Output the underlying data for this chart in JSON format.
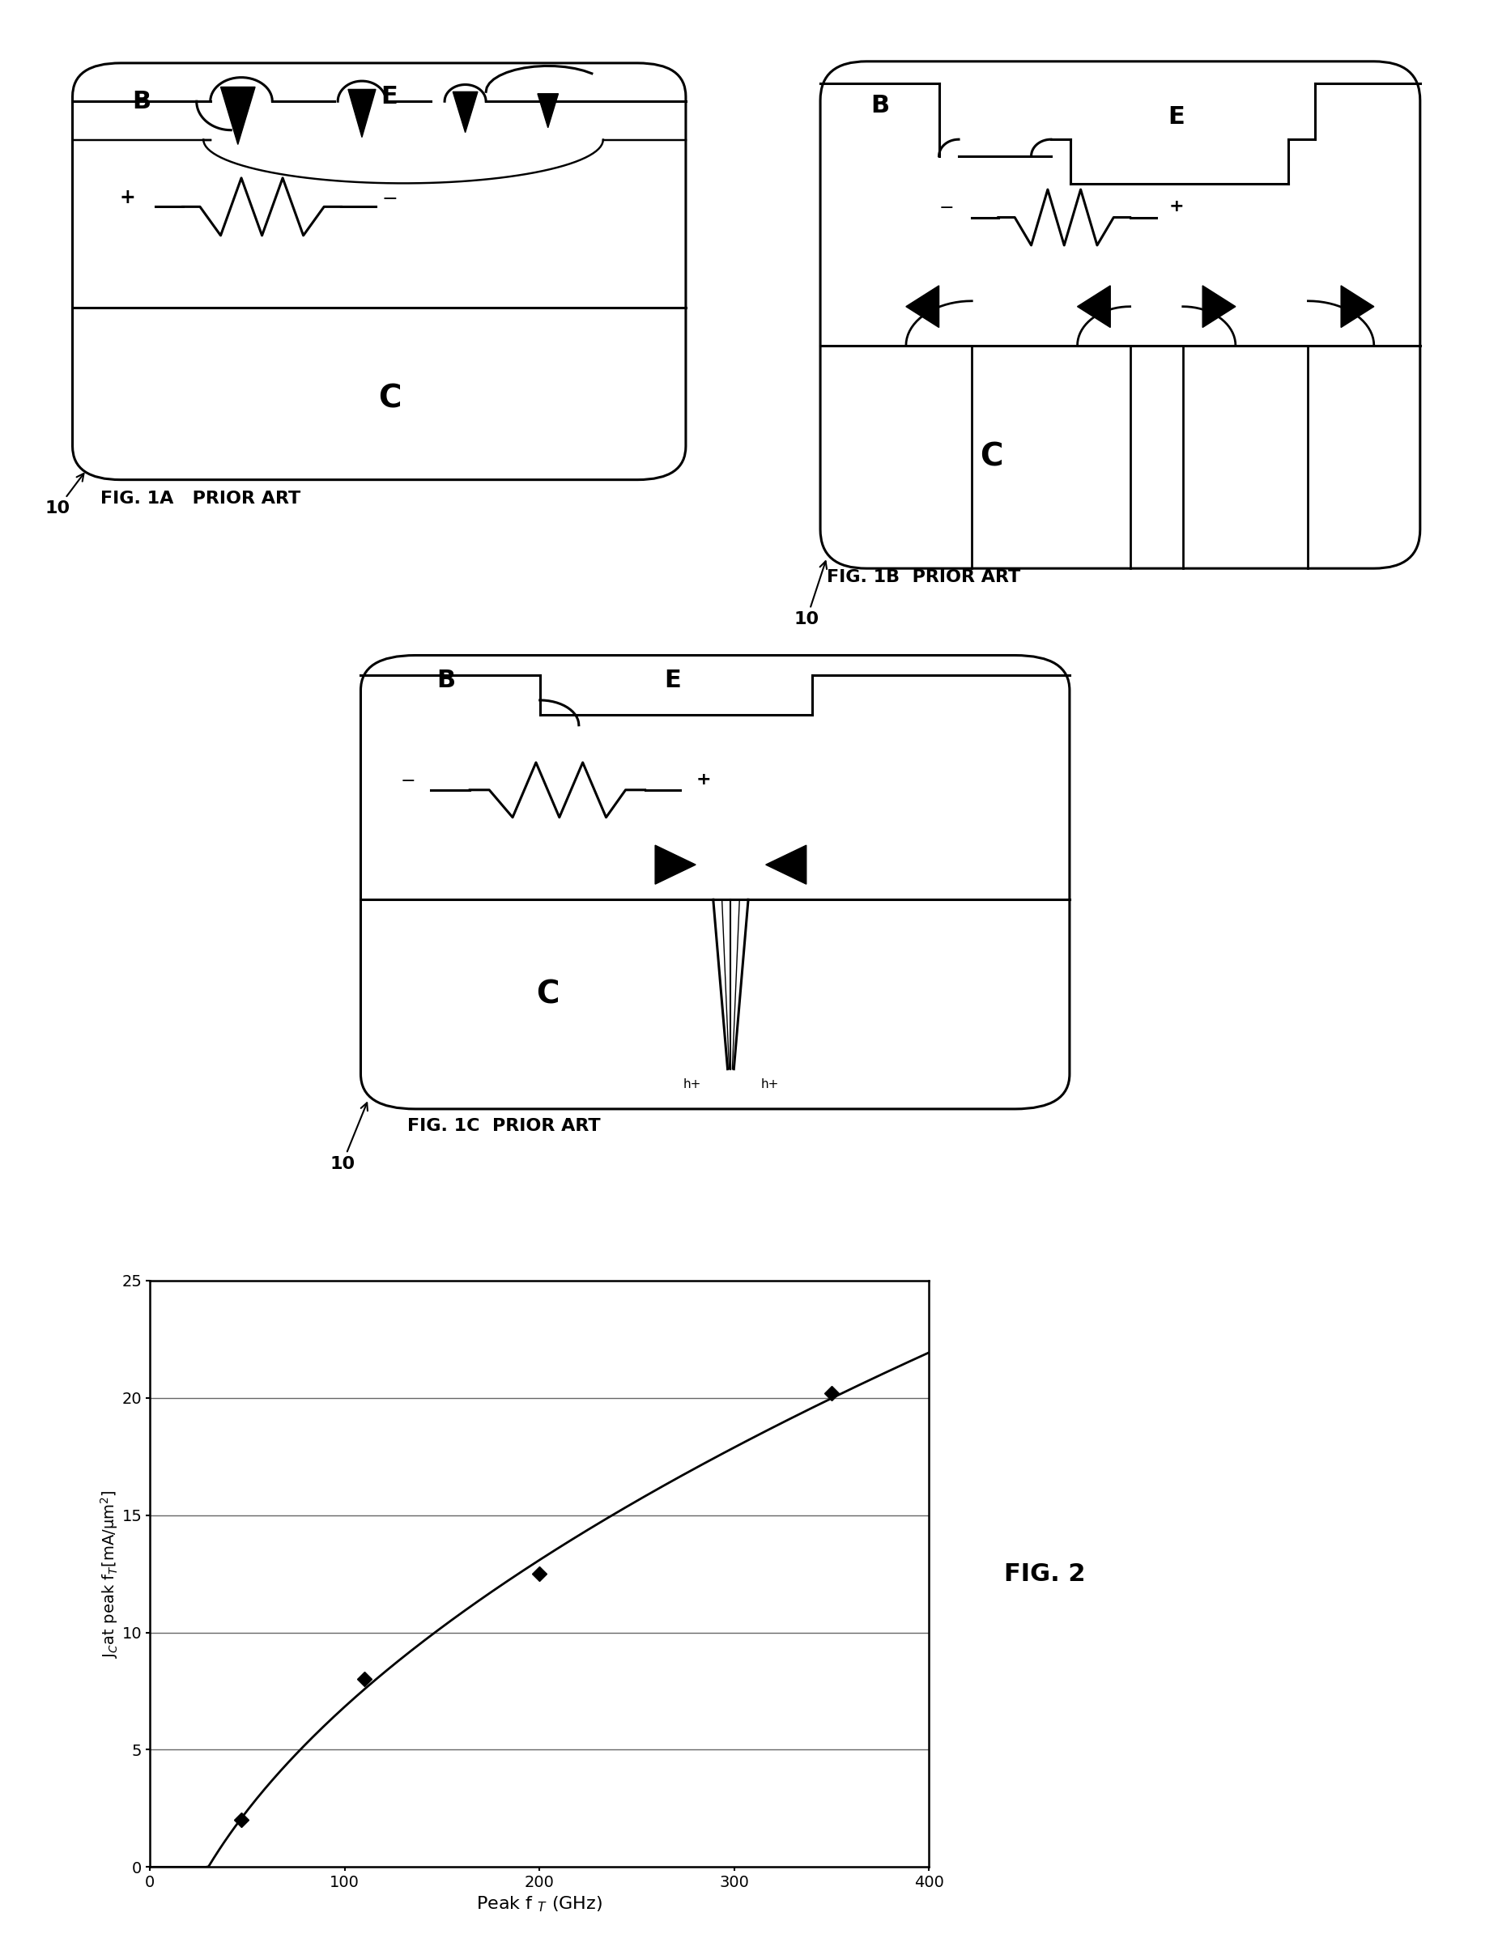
{
  "fig_width": 18.5,
  "fig_height": 24.15,
  "background_color": "#ffffff",
  "plot_data": {
    "x": [
      47,
      110,
      200,
      350
    ],
    "y": [
      2.0,
      8.0,
      12.5,
      20.2
    ],
    "xlabel": "Peak f  $_T$ (GHz)",
    "ylabel": "J$_C$at peak f$_T$[mA/μm$^2$]",
    "xlim": [
      0,
      400
    ],
    "ylim": [
      0,
      25
    ],
    "xticks": [
      0,
      100,
      200,
      300,
      400
    ],
    "yticks": [
      0,
      5,
      10,
      15,
      20,
      25
    ],
    "fig_label": "FIG. 2"
  }
}
